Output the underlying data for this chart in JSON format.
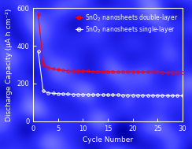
{
  "background_color": "#1818cc",
  "plot_bg_color": "#1818cc",
  "xlabel": "Cycle Number",
  "ylabel": "Discharge Capacity (μA h cm⁻²)",
  "xlim": [
    0,
    30
  ],
  "ylim": [
    0,
    600
  ],
  "xticks": [
    0,
    5,
    10,
    15,
    20,
    25,
    30
  ],
  "yticks": [
    0,
    200,
    400,
    600
  ],
  "double_layer_x": [
    1,
    2,
    3,
    4,
    5,
    6,
    7,
    8,
    9,
    10,
    11,
    12,
    13,
    14,
    15,
    16,
    17,
    18,
    19,
    20,
    21,
    22,
    23,
    24,
    25,
    26,
    27,
    28,
    29,
    30
  ],
  "double_layer_y": [
    570,
    300,
    285,
    278,
    273,
    270,
    268,
    267,
    266,
    265,
    265,
    264,
    264,
    263,
    263,
    263,
    262,
    262,
    262,
    262,
    261,
    261,
    261,
    261,
    261,
    260,
    260,
    260,
    260,
    260
  ],
  "single_layer_x": [
    1,
    2,
    3,
    4,
    5,
    6,
    7,
    8,
    9,
    10,
    11,
    12,
    13,
    14,
    15,
    16,
    17,
    18,
    19,
    20,
    21,
    22,
    23,
    24,
    25,
    26,
    27,
    28,
    29,
    30
  ],
  "single_layer_y": [
    370,
    160,
    150,
    148,
    146,
    145,
    144,
    143,
    143,
    142,
    141,
    141,
    140,
    140,
    139,
    139,
    139,
    138,
    138,
    138,
    137,
    137,
    137,
    136,
    136,
    136,
    135,
    135,
    135,
    135
  ],
  "double_color": "#ff0000",
  "single_color": "#ffffff",
  "text_color": "#ffffff",
  "label_double": "SnO$_2$ nanosheets double-layer",
  "label_single": "SnO$_2$ nanosheets single-layer",
  "font_size": 5.5,
  "axis_label_size": 6.5,
  "tick_size": 6,
  "noise_seed": 42
}
